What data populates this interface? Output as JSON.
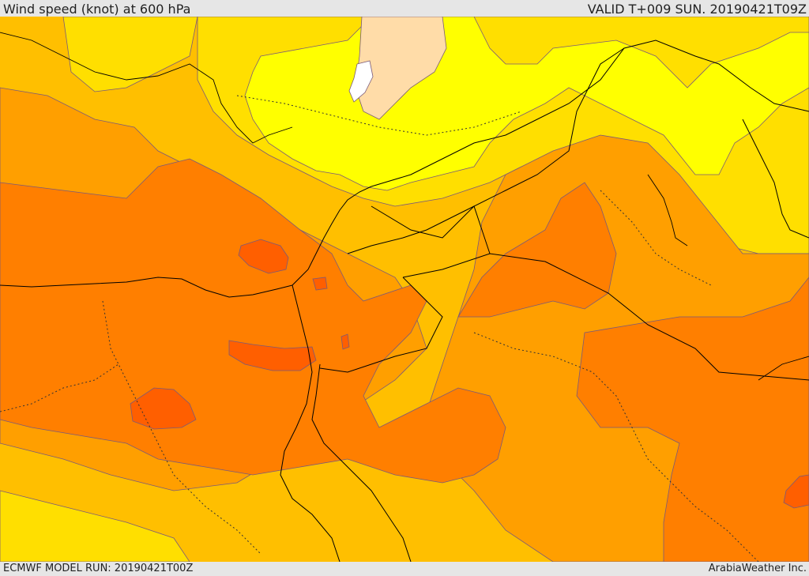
{
  "header": {
    "title": "Wind speed (knot) at 600 hPa",
    "valid": "VALID T+009 SUN. 20190421T09Z"
  },
  "footer": {
    "model_run": "ECMWF MODEL RUN: 20190421T00Z",
    "brand": "ArabiaWeather Inc."
  },
  "colors": {
    "white": "#ffffff",
    "peach": "#ffdca8",
    "yellow": "#ffff00",
    "gold": "#ffdf00",
    "amber": "#ffbf00",
    "orange": "#ff9f00",
    "dark_orange": "#ff7f00",
    "red_orange": "#ff5f00",
    "contour": "#7a5a7a",
    "border": "#000000"
  }
}
